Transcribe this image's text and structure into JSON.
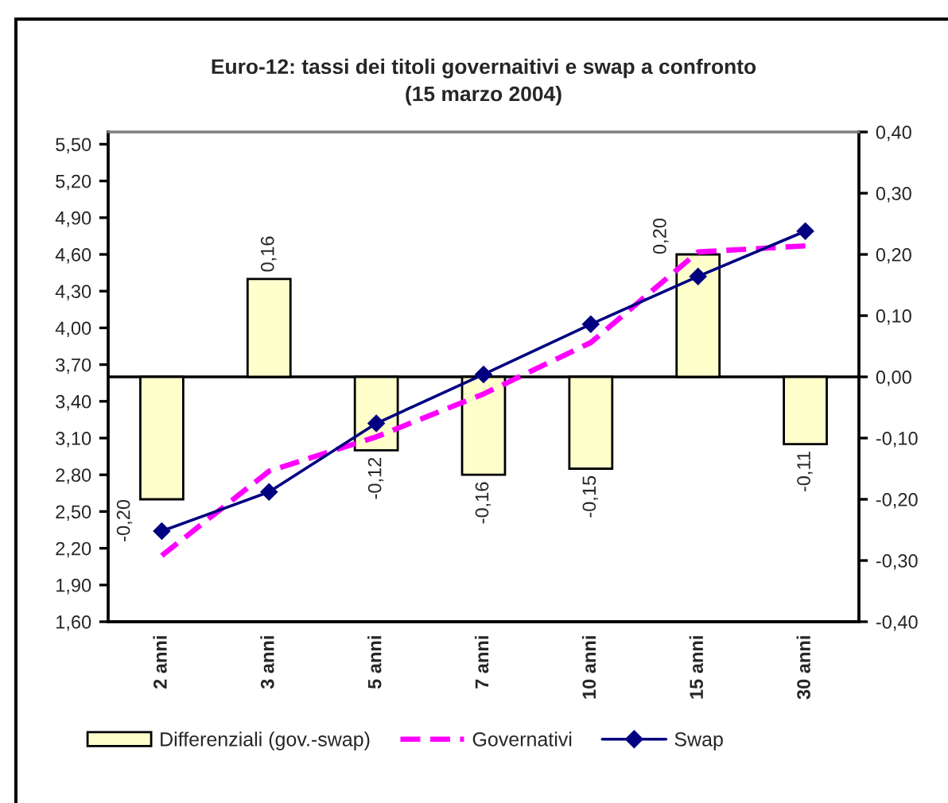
{
  "chart_data": {
    "type": "bar",
    "title": "Euro-12: tassi dei titoli governaitivi e swap a confronto\n(15 marzo 2004)",
    "categories": [
      "2 anni",
      "3 anni",
      "5 anni",
      "7 anni",
      "10 anni",
      "15 anni",
      "30 anni"
    ],
    "series": [
      {
        "name": "Differenziali (gov.-swap)",
        "axis": "y2",
        "color": "#ffffcc",
        "values": [
          -0.2,
          0.16,
          -0.12,
          -0.16,
          -0.15,
          0.2,
          -0.11
        ],
        "value_labels": [
          "-0,20",
          "0,16",
          "-0,12",
          "-0,16",
          "-0,15",
          "0,20",
          "-0,11"
        ]
      },
      {
        "name": "Governativi",
        "type": "line",
        "color": "#ff00ff",
        "line_style": "dashed",
        "marker": "none",
        "values": [
          2.14,
          2.83,
          3.11,
          3.46,
          3.88,
          4.62,
          4.67
        ]
      },
      {
        "name": "Swap",
        "type": "line",
        "color": "#000080",
        "line_style": "solid",
        "marker": "diamond",
        "values": [
          2.34,
          2.66,
          3.22,
          3.62,
          4.03,
          4.42,
          4.79
        ]
      }
    ],
    "ylim": [
      1.6,
      5.6
    ],
    "yticks": [
      {
        "value": 1.6,
        "label": "1,60"
      },
      {
        "value": 1.9,
        "label": "1,90"
      },
      {
        "value": 2.2,
        "label": "2,20"
      },
      {
        "value": 2.5,
        "label": "2,50"
      },
      {
        "value": 2.8,
        "label": "2,80"
      },
      {
        "value": 3.1,
        "label": "3,10"
      },
      {
        "value": 3.4,
        "label": "3,40"
      },
      {
        "value": 3.7,
        "label": "3,70"
      },
      {
        "value": 4.0,
        "label": "4,00"
      },
      {
        "value": 4.3,
        "label": "4,30"
      },
      {
        "value": 4.6,
        "label": "4,60"
      },
      {
        "value": 4.9,
        "label": "4,90"
      },
      {
        "value": 5.2,
        "label": "5,20"
      },
      {
        "value": 5.5,
        "label": "5,50"
      }
    ],
    "y2lim": [
      -0.4,
      0.4
    ],
    "y2ticks": [
      {
        "value": -0.4,
        "label": "-0,40"
      },
      {
        "value": -0.3,
        "label": "-0,30"
      },
      {
        "value": -0.2,
        "label": "-0,20"
      },
      {
        "value": -0.1,
        "label": "-0,10"
      },
      {
        "value": 0,
        "label": "0,00"
      },
      {
        "value": 0.1,
        "label": "0,10"
      },
      {
        "value": 0.2,
        "label": "0,20"
      },
      {
        "value": 0.3,
        "label": "0,30"
      },
      {
        "value": 0.4,
        "label": "0,40"
      }
    ],
    "ref_lines": [
      {
        "axis": "y2",
        "value": 0
      }
    ],
    "legend": "bottom",
    "grid": false
  }
}
